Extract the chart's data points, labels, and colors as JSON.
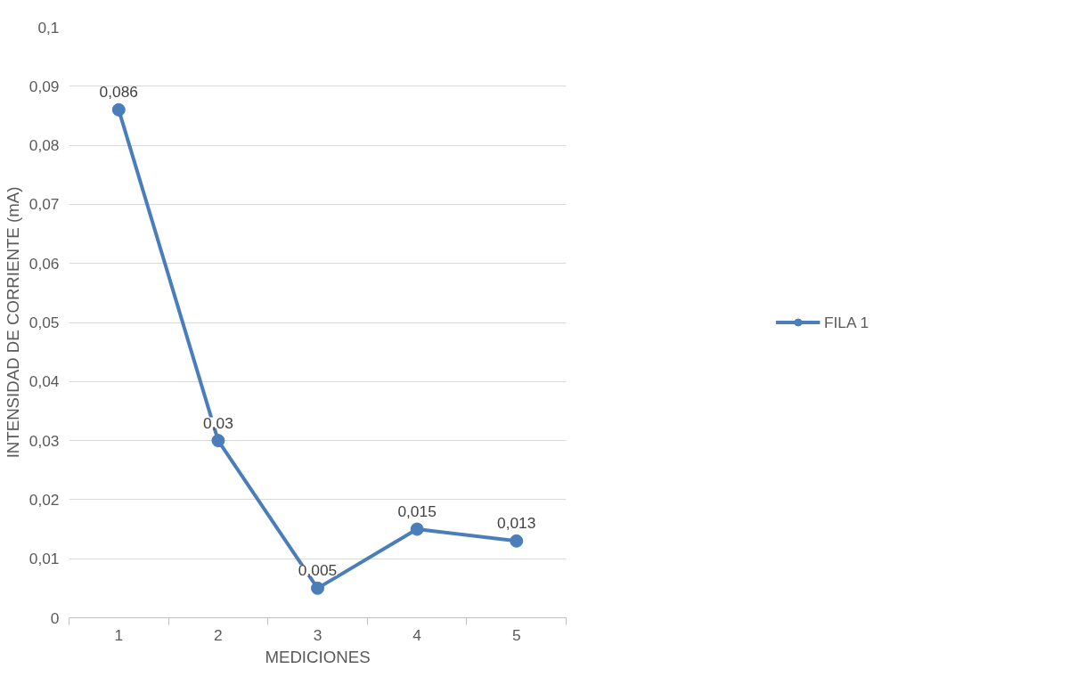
{
  "chart_data": {
    "type": "line",
    "xlabel": "MEDICIONES",
    "ylabel": "INTENSIDAD DE CORRIENTE (mA)",
    "categories": [
      "1",
      "2",
      "3",
      "4",
      "5"
    ],
    "series": [
      {
        "name": "FILA 1",
        "color": "#4a7ebb",
        "values": [
          0.086,
          0.03,
          0.005,
          0.015,
          0.013
        ],
        "value_labels": [
          "0,086",
          "0,03",
          "0,005",
          "0,015",
          "0,013"
        ]
      }
    ],
    "ylim": [
      0,
      0.1
    ],
    "yticks": [
      0,
      {
        "value": 0.01,
        "label": "0,01"
      },
      {
        "value": 0.02,
        "label": "0,02"
      },
      {
        "value": 0.03,
        "label": "0,03"
      },
      {
        "value": 0.04,
        "label": "0,04"
      },
      {
        "value": 0.05,
        "label": "0,05"
      },
      {
        "value": 0.06,
        "label": "0,06"
      },
      {
        "value": 0.07,
        "label": "0,07"
      },
      {
        "value": 0.08,
        "label": "0,08"
      },
      {
        "value": 0.09,
        "label": "0,09"
      },
      {
        "value": 0.1,
        "label": "0,1"
      }
    ],
    "grid": "y",
    "legend": "right",
    "marker": "circle",
    "line_style": "solid"
  }
}
